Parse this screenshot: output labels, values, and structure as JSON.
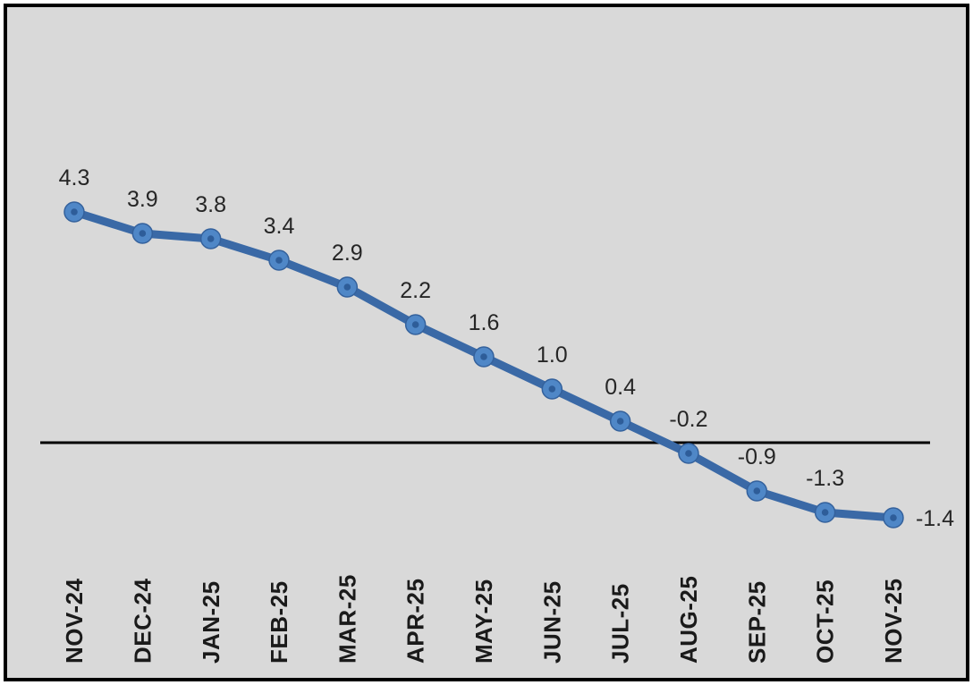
{
  "chart_data": {
    "type": "line",
    "title": "",
    "xlabel": "",
    "ylabel": "",
    "categories": [
      "NOV-24",
      "DEC-24",
      "JAN-25",
      "FEB-25",
      "MAR-25",
      "APR-25",
      "MAY-25",
      "JUN-25",
      "JUL-25",
      "AUG-25",
      "SEP-25",
      "OCT-25",
      "NOV-25"
    ],
    "values": [
      4.3,
      3.9,
      3.8,
      3.4,
      2.9,
      2.2,
      1.6,
      1.0,
      0.4,
      -0.2,
      -0.9,
      -1.3,
      -1.4
    ],
    "data_labels": [
      "4.3",
      "3.9",
      "3.8",
      "3.4",
      "2.9",
      "2.2",
      "1.6",
      "1.0",
      "0.4",
      "-0.2",
      "-0.9",
      "-1.3",
      "-1.4"
    ],
    "ylim": [
      -2.1,
      7.8
    ],
    "grid": false,
    "legend_position": "none",
    "zero_axis_line": true,
    "marker_shape": "circle",
    "colors": {
      "line": "#3A69A6",
      "marker_fill": "#4F87C7",
      "marker_edge": "#34619C",
      "marker_center": "#2E5D99",
      "data_label_text": "#262626",
      "category_label_text": "#1A1A1A",
      "zero_axis": "#000000",
      "plot_background": "#D9D9D9",
      "frame_border": "#000000"
    }
  }
}
